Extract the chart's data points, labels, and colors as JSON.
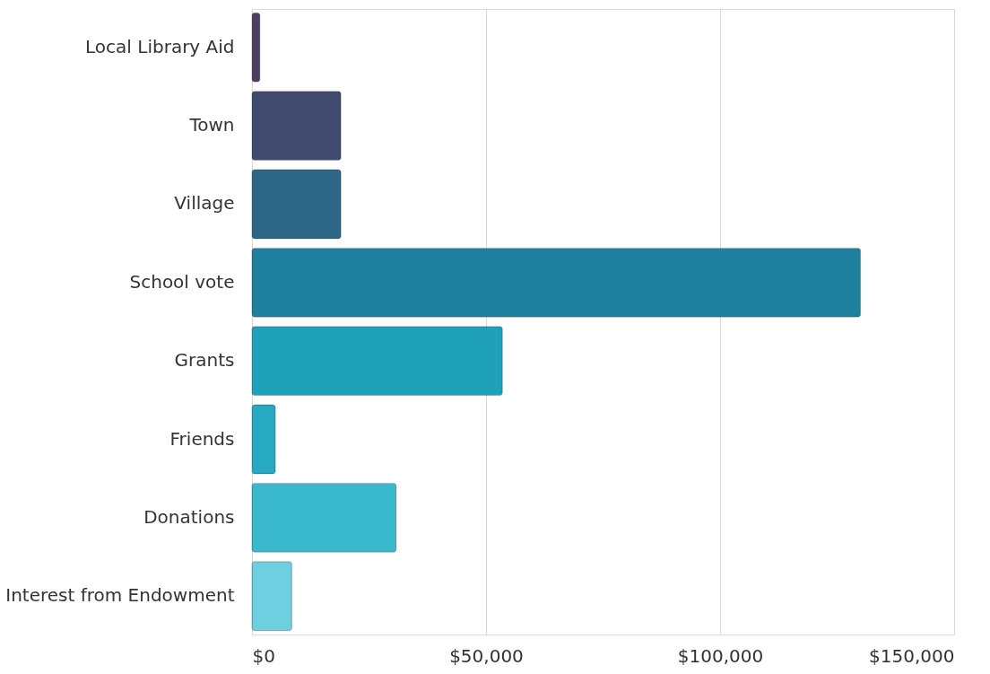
{
  "chart_data": {
    "type": "bar",
    "orientation": "horizontal",
    "categories": [
      "Local Library Aid",
      "Town",
      "Village",
      "School vote",
      "Grants",
      "Friends",
      "Donations",
      "Interest from Endowment"
    ],
    "values": [
      1700,
      19000,
      19000,
      130000,
      53500,
      5000,
      30800,
      8500
    ],
    "colors": [
      "#4d3f5f",
      "#3f4a6e",
      "#2e6688",
      "#1f7f9f",
      "#1ea1b9",
      "#27aac1",
      "#3bb9cc",
      "#6dcfe0"
    ],
    "xlim": [
      0,
      150000
    ],
    "xticks": [
      {
        "value": 0,
        "label": "$0"
      },
      {
        "value": 50000,
        "label": "$50,000"
      },
      {
        "value": 100000,
        "label": "$100,000"
      },
      {
        "value": 150000,
        "label": "$150,000"
      }
    ],
    "grid": "x"
  }
}
